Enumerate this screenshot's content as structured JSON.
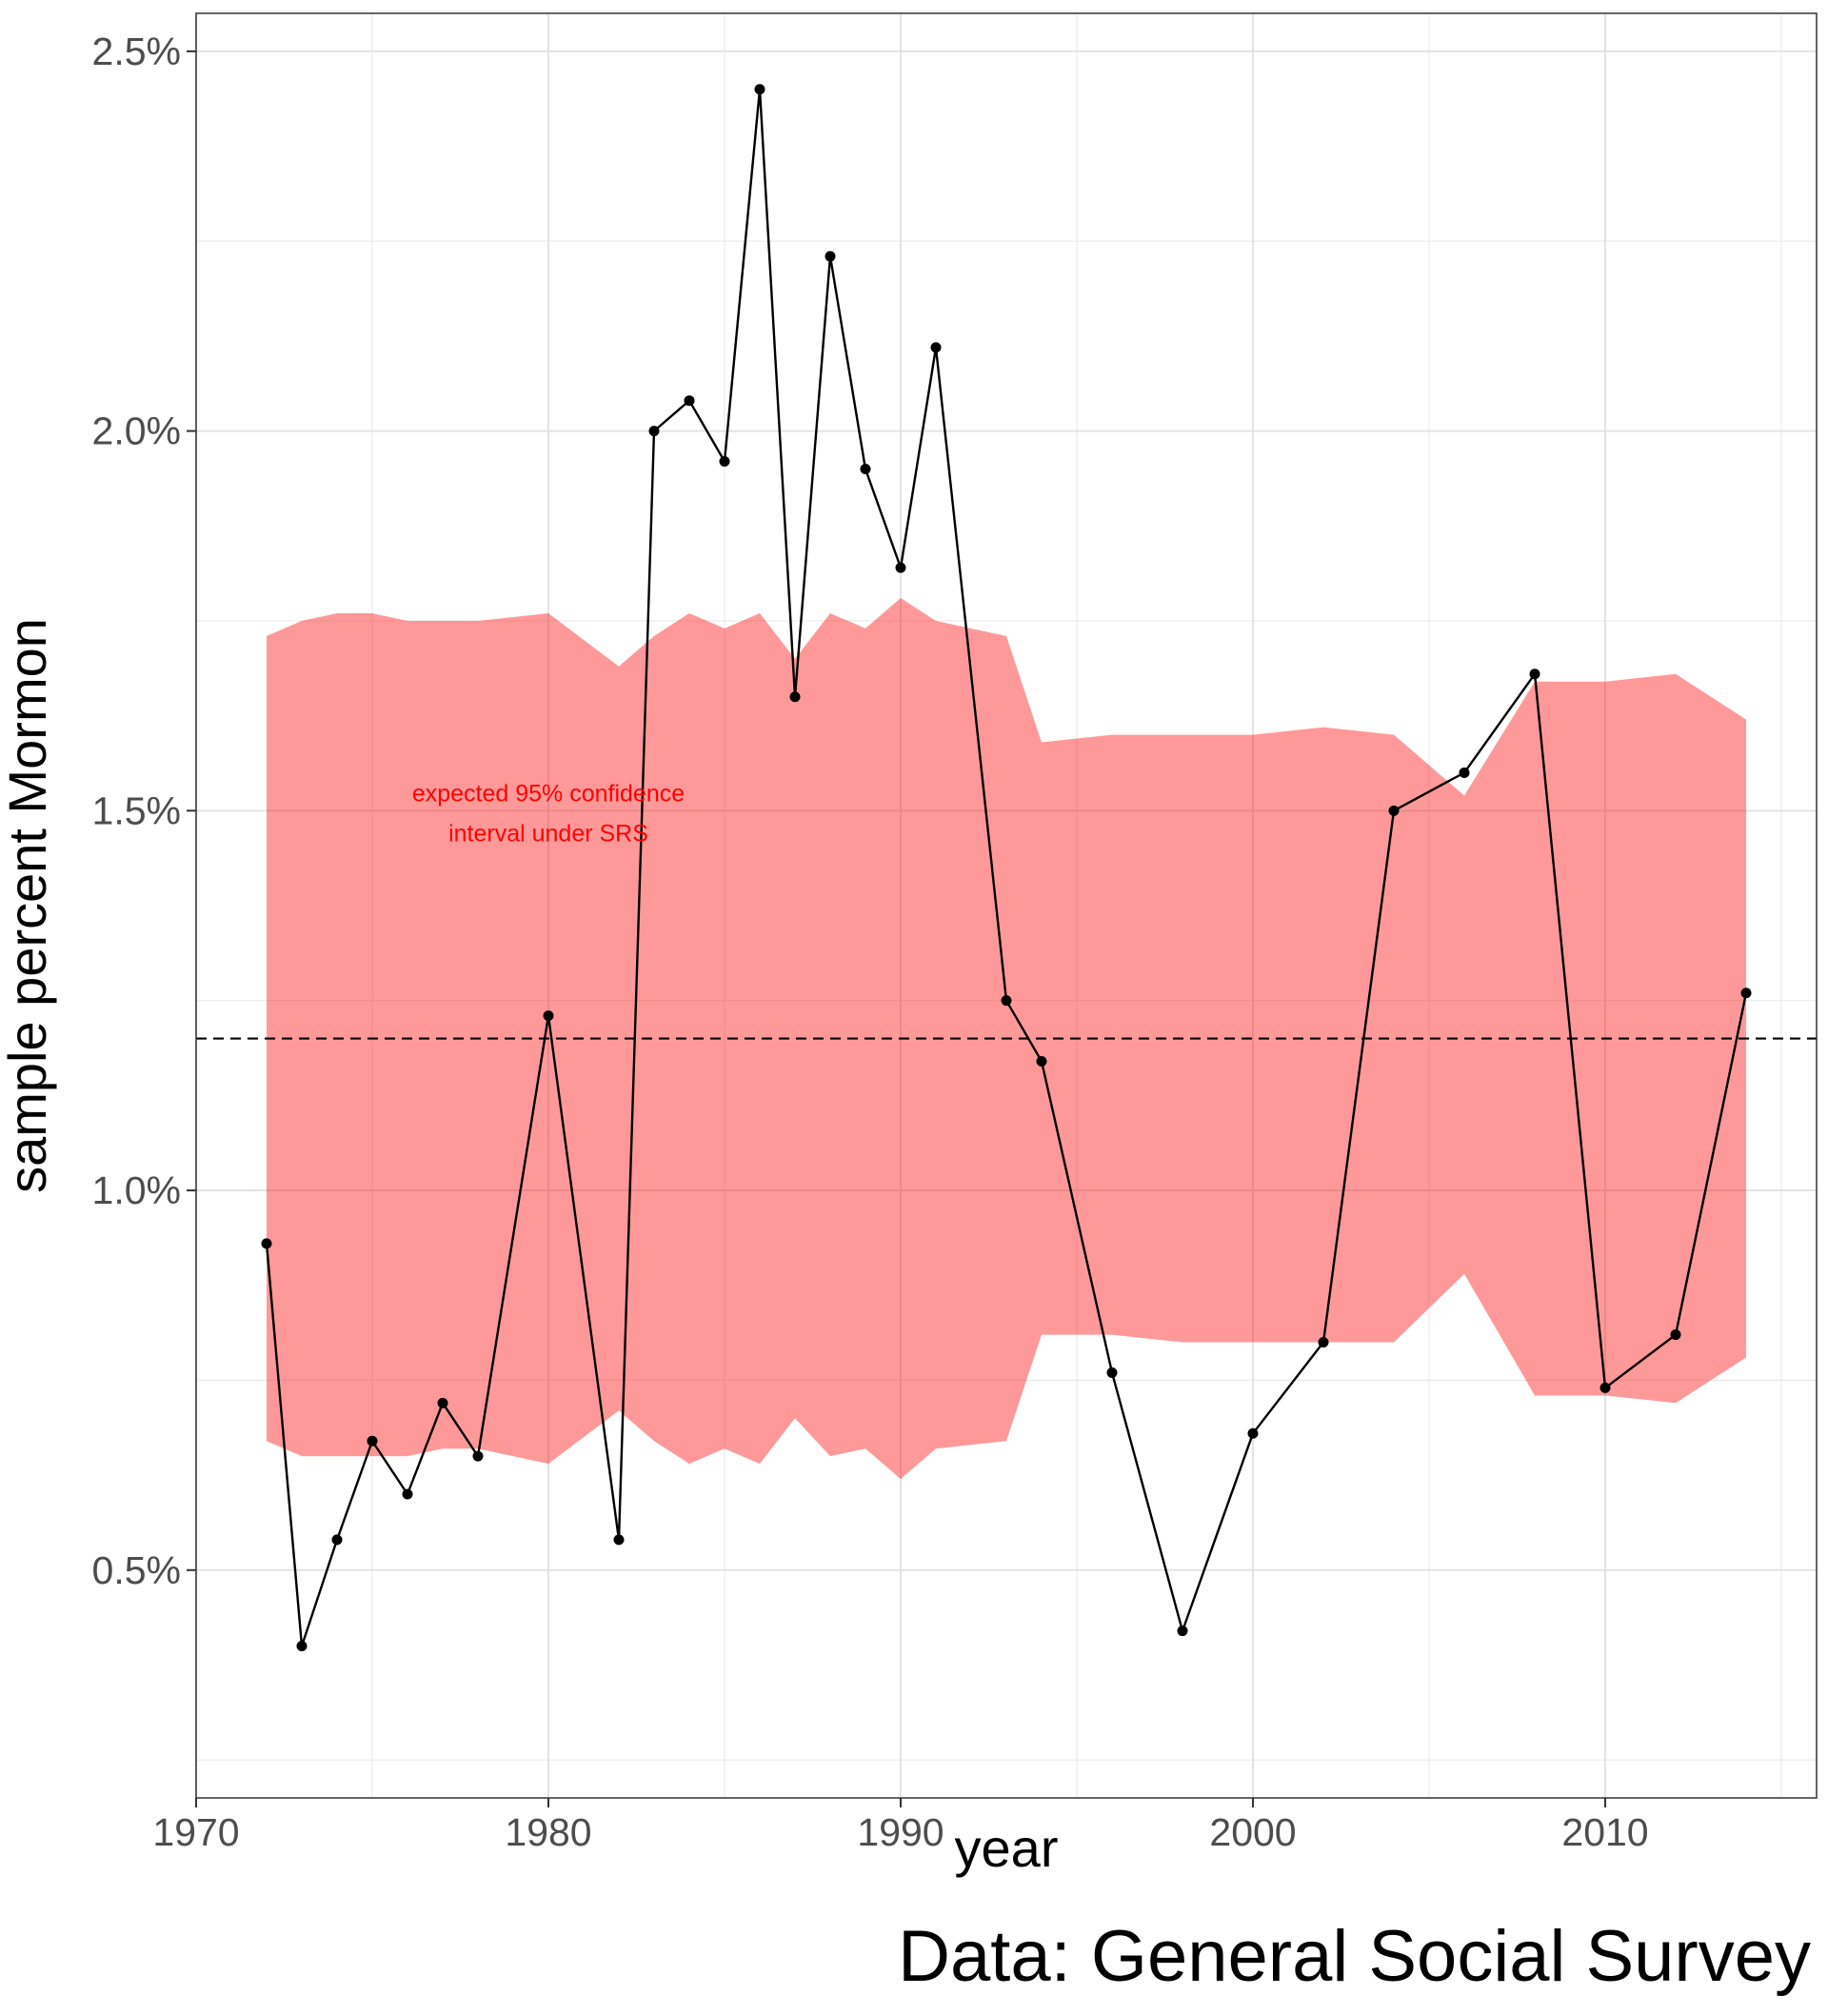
{
  "chart_data": {
    "type": "line",
    "title": "",
    "xlabel": "year",
    "ylabel": "sample percent Mormon",
    "caption": "Data: General Social Survey",
    "xlim": [
      1970,
      2016
    ],
    "ylim": [
      0.002,
      0.0255
    ],
    "x_ticks": [
      1970,
      1980,
      1990,
      2000,
      2010
    ],
    "x_tick_labels": [
      "1970",
      "1980",
      "1990",
      "2000",
      "2010"
    ],
    "y_ticks": [
      0.005,
      0.01,
      0.015,
      0.02,
      0.025
    ],
    "y_tick_labels": [
      "0.5%",
      "1.0%",
      "1.5%",
      "2.0%",
      "2.5%"
    ],
    "grid": true,
    "reference_line": {
      "y": 0.012,
      "style": "dashed",
      "color": "#000000"
    },
    "annotation": {
      "lines": [
        "expected 95% confidence",
        "interval under SRS"
      ],
      "x": 1980,
      "y": 0.015,
      "color": "#ff0000"
    },
    "series": [
      {
        "type": "line",
        "color": "#000000",
        "x": [
          1972,
          1973,
          1974,
          1975,
          1976,
          1977,
          1978,
          1980,
          1982,
          1983,
          1984,
          1985,
          1986,
          1987,
          1988,
          1989,
          1990,
          1991,
          1993,
          1994,
          1996,
          1998,
          2000,
          2002,
          2004,
          2006,
          2008,
          2010,
          2012,
          2014
        ],
        "y": [
          0.0093,
          0.004,
          0.0054,
          0.0067,
          0.006,
          0.0072,
          0.0065,
          0.0123,
          0.0054,
          0.02,
          0.0204,
          0.0196,
          0.0245,
          0.0165,
          0.0223,
          0.0195,
          0.0182,
          0.0211,
          0.0125,
          0.0117,
          0.0076,
          0.0042,
          0.0068,
          0.008,
          0.015,
          0.0155,
          0.0168,
          0.0074,
          0.0081,
          0.0126
        ]
      }
    ],
    "ribbon": {
      "label": "expected 95% confidence interval under SRS",
      "color": "#ff0000",
      "opacity": 0.4,
      "x": [
        1972,
        1973,
        1974,
        1975,
        1976,
        1977,
        1978,
        1980,
        1982,
        1983,
        1984,
        1985,
        1986,
        1987,
        1988,
        1989,
        1990,
        1991,
        1993,
        1994,
        1996,
        1998,
        2000,
        2002,
        2004,
        2006,
        2008,
        2010,
        2012,
        2014
      ],
      "lower": [
        0.0067,
        0.0065,
        0.0065,
        0.0065,
        0.0065,
        0.0066,
        0.0066,
        0.0064,
        0.0071,
        0.0067,
        0.0064,
        0.0066,
        0.0064,
        0.007,
        0.0065,
        0.0066,
        0.0062,
        0.0066,
        0.0067,
        0.0081,
        0.0081,
        0.008,
        0.008,
        0.008,
        0.008,
        0.0089,
        0.0073,
        0.0073,
        0.0072,
        0.0078
      ],
      "upper": [
        0.0173,
        0.0175,
        0.0176,
        0.0176,
        0.0175,
        0.0175,
        0.0175,
        0.0176,
        0.0169,
        0.0173,
        0.0176,
        0.0174,
        0.0176,
        0.017,
        0.0176,
        0.0174,
        0.0178,
        0.0175,
        0.0173,
        0.0159,
        0.016,
        0.016,
        0.016,
        0.0161,
        0.016,
        0.0152,
        0.0167,
        0.0167,
        0.0168,
        0.0162
      ]
    }
  }
}
